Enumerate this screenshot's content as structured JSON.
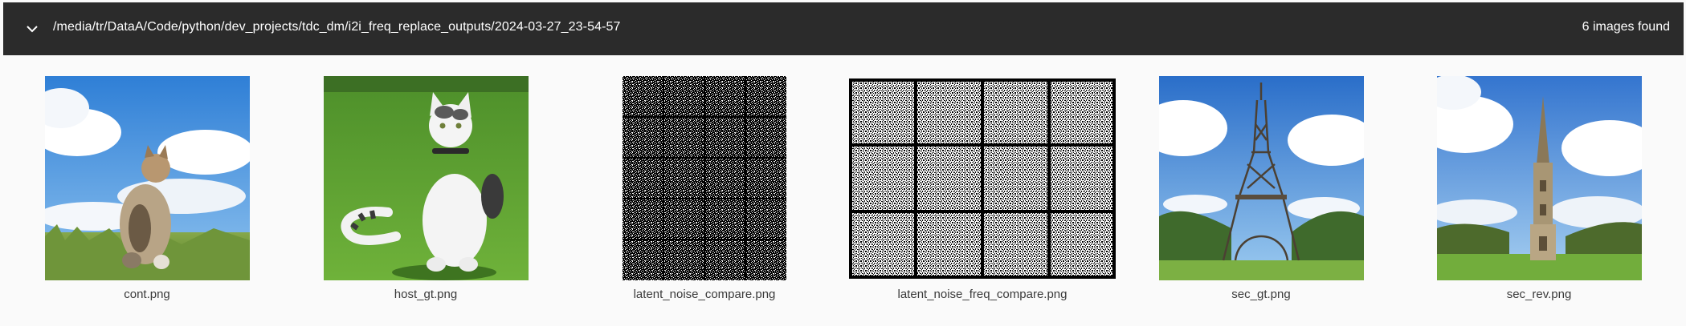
{
  "header": {
    "path": "/media/tr/DataA/Code/python/dev_projects/tdc_dm/i2i_freq_replace_outputs/2024-03-27_23-54-57",
    "count_label": "6 images found",
    "toggle_icon": "chevron-down-icon"
  },
  "images": [
    {
      "filename": "cont.png",
      "depicts": "cat sitting in grass under blue sky"
    },
    {
      "filename": "host_gt.png",
      "depicts": "white cat sitting on green lawn"
    },
    {
      "filename": "latent_noise_compare.png",
      "depicts": "black and white noise grid"
    },
    {
      "filename": "latent_noise_freq_compare.png",
      "depicts": "black and white noise grid"
    },
    {
      "filename": "sec_gt.png",
      "depicts": "Eiffel tower with blue sky"
    },
    {
      "filename": "sec_rev.png",
      "depicts": "stone spire with blue sky"
    }
  ],
  "colors": {
    "header_bg": "#2b2b2b",
    "page_bg": "#fafafa",
    "caption_text": "#3a3a3a"
  }
}
